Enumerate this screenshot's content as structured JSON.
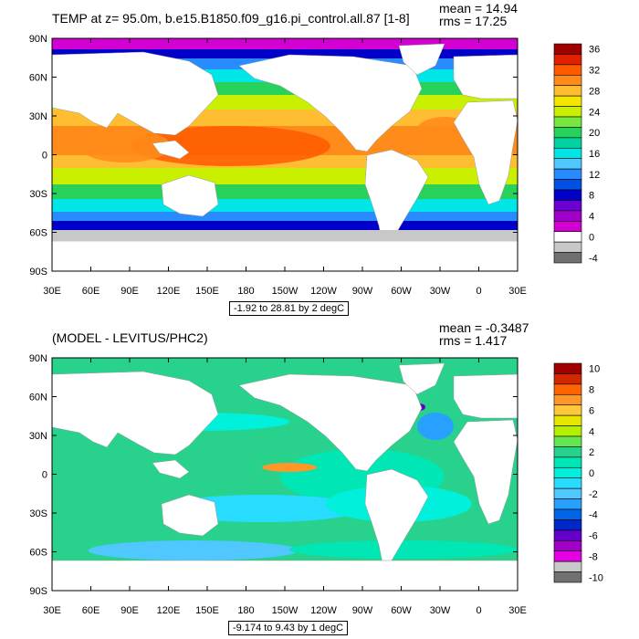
{
  "panels": [
    {
      "title": "TEMP at z=  95.0m, b.e15.B1850.f09_g16.pi_control.all.87 [1-8]",
      "mean_label": "mean = 14.94",
      "rms_label": "rms = 17.25",
      "range_label": "-1.92 to 28.81 by 2 degC",
      "colorbar_labels": [
        "36",
        "32",
        "28",
        "24",
        "20",
        "16",
        "12",
        "8",
        "4",
        "0",
        "-4"
      ],
      "colorbar_colors": [
        "#a00000",
        "#e02000",
        "#ff5a00",
        "#ff8c1a",
        "#ffbe32",
        "#f5e600",
        "#c8f000",
        "#78e63c",
        "#28d25a",
        "#00d2a0",
        "#00e6e6",
        "#50c8ff",
        "#288cff",
        "#0050e6",
        "#0000c8",
        "#6a00d2",
        "#a000c8",
        "#d200d2",
        "#ffffff",
        "#c8c8c8",
        "#707070"
      ],
      "palette": "temperature"
    },
    {
      "title": "(MODEL - LEVITUS/PHC2)",
      "mean_label": "mean = -0.3487",
      "rms_label": "rms = 1.417",
      "range_label": "-9.174 to 9.43 by 1 degC",
      "colorbar_labels": [
        "10",
        "8",
        "6",
        "4",
        "2",
        "0",
        "-2",
        "-4",
        "-6",
        "-8",
        "-10"
      ],
      "colorbar_colors": [
        "#a00000",
        "#d22800",
        "#ff6400",
        "#ff9628",
        "#ffc83c",
        "#e6e600",
        "#b4f000",
        "#64e650",
        "#28d28c",
        "#00e6b4",
        "#00f0dc",
        "#28dcff",
        "#50c8ff",
        "#28a0ff",
        "#0064e6",
        "#0028c8",
        "#6400c8",
        "#a000c8",
        "#e600e6",
        "#c8c8c8",
        "#707070"
      ],
      "palette": "difference"
    }
  ],
  "axes": {
    "lat_labels": [
      "90N",
      "60N",
      "30N",
      "0",
      "30S",
      "60S",
      "90S"
    ],
    "lon_labels": [
      "30E",
      "60E",
      "90E",
      "120E",
      "150E",
      "180",
      "150W",
      "120W",
      "90W",
      "60W",
      "30W",
      "0",
      "30E"
    ]
  }
}
